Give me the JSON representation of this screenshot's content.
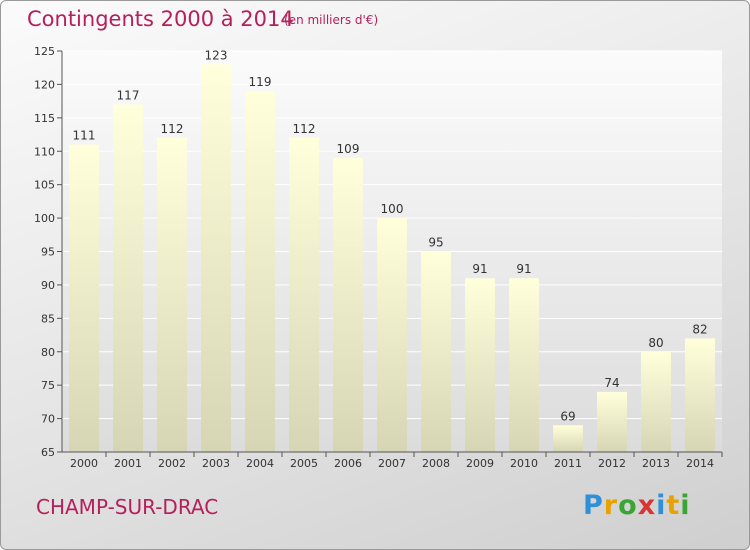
{
  "header": {
    "title": "Contingents 2000 à 2014",
    "unit": "(en milliers d'€)"
  },
  "footer": {
    "commune": "CHAMP-SUR-DRAC",
    "logo_letters": [
      "P",
      "r",
      "o",
      "x",
      "i",
      "t",
      "i"
    ],
    "logo_colors": [
      "#2f8fd8",
      "#e8a200",
      "#3aa535",
      "#d93434",
      "#2f8fd8",
      "#e8a200",
      "#3aa535"
    ]
  },
  "colors": {
    "bar_top": "#ffffdb",
    "bar_bottom": "#d6d6b5",
    "plot_bg_top": "#fbfbfb",
    "plot_bg_bottom": "#dcdcdc",
    "grid": "#ffffff",
    "title": "#b5205c"
  },
  "chart_data": {
    "type": "bar",
    "title": "Contingents 2000 à 2014",
    "subtitle": "(en milliers d'€)",
    "categories": [
      "2000",
      "2001",
      "2002",
      "2003",
      "2004",
      "2005",
      "2006",
      "2007",
      "2008",
      "2009",
      "2010",
      "2011",
      "2012",
      "2013",
      "2014"
    ],
    "values": [
      111,
      117,
      112,
      123,
      119,
      112,
      109,
      100,
      95,
      91,
      91,
      69,
      74,
      80,
      82
    ],
    "ylim": [
      65,
      125
    ],
    "yticks": [
      65,
      70,
      75,
      80,
      85,
      90,
      95,
      100,
      105,
      110,
      115,
      120,
      125
    ],
    "grid": true,
    "xlabel": "",
    "ylabel": ""
  }
}
